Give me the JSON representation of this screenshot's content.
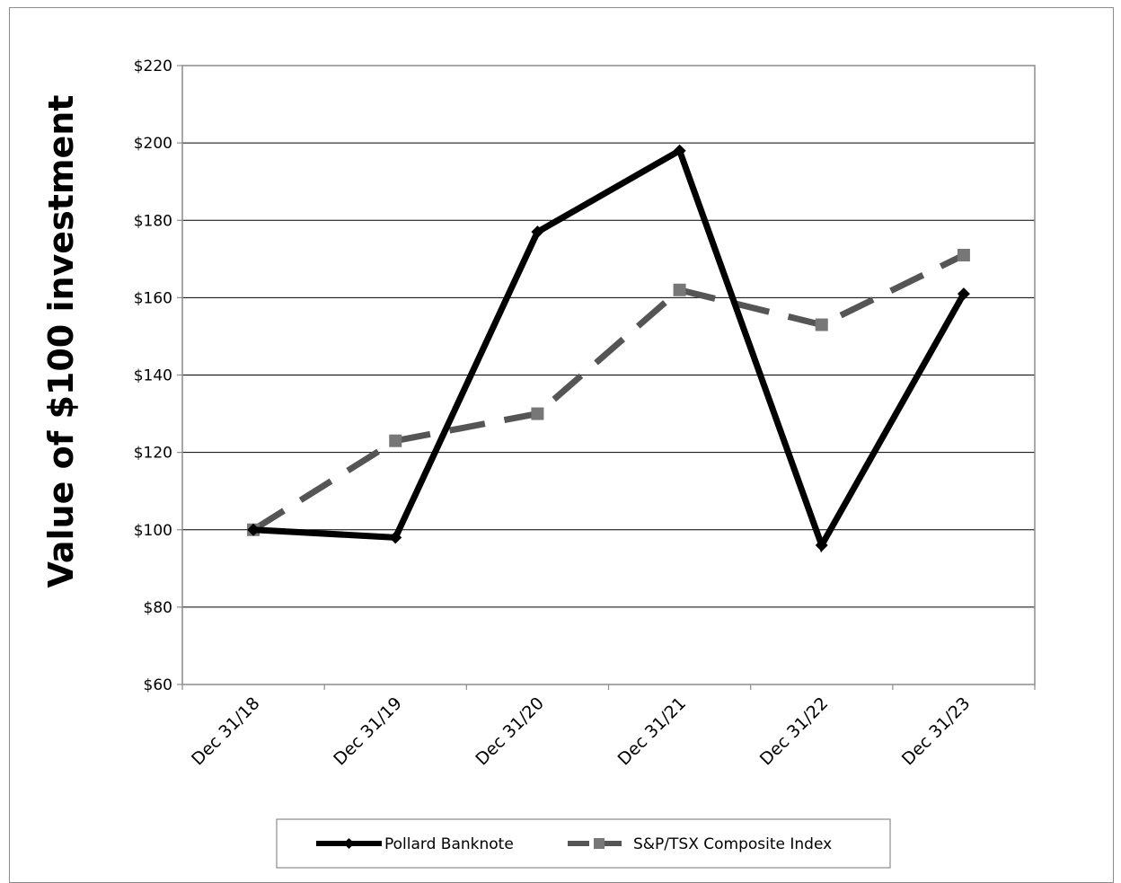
{
  "chart_data": {
    "type": "line",
    "title": "",
    "xlabel": "",
    "ylabel": "Value of $100 investment",
    "categories": [
      "Dec 31/18",
      "Dec 31/19",
      "Dec 31/20",
      "Dec 31/21",
      "Dec 31/22",
      "Dec 31/23"
    ],
    "ylim": [
      60,
      220
    ],
    "y_ticks": [
      60,
      80,
      100,
      120,
      140,
      160,
      180,
      200,
      220
    ],
    "y_tick_labels": [
      "$60",
      "$80",
      "$100",
      "$120",
      "$140",
      "$160",
      "$180",
      "$200",
      "$220"
    ],
    "grid": "horizontal",
    "legend_position": "bottom",
    "series": [
      {
        "name": "Pollard Banknote",
        "values": [
          100,
          98,
          177,
          198,
          96,
          161
        ],
        "color": "#000000",
        "line_style": "solid",
        "marker": "diamond"
      },
      {
        "name": "S&P/TSX Composite Index",
        "values": [
          100,
          123,
          130,
          162,
          153,
          171
        ],
        "color": "#555555",
        "line_style": "dashed",
        "marker": "square"
      }
    ]
  }
}
